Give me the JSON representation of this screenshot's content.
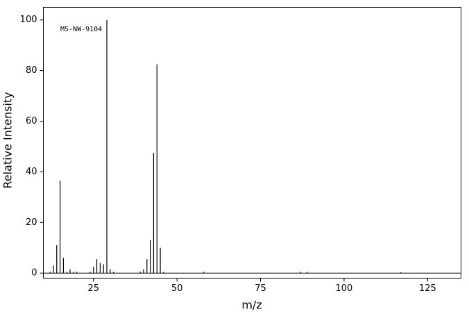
{
  "chart_data": {
    "type": "stem",
    "annotation": "MS-NW-9104",
    "xlabel": "m/z",
    "ylabel": "Relative Intensity",
    "color": "#000000",
    "x": [
      12,
      13,
      14,
      15,
      16,
      17,
      18,
      19,
      20,
      24,
      25,
      26,
      27,
      28,
      29,
      30,
      31,
      39,
      40,
      41,
      42,
      43,
      44,
      45,
      46,
      58,
      87,
      89,
      117
    ],
    "values": [
      0.5,
      3,
      11,
      36.5,
      6,
      0.5,
      1.5,
      0.5,
      0.5,
      0.5,
      2.5,
      5.5,
      4,
      3.5,
      100,
      1.5,
      0.5,
      0.5,
      1.5,
      5.5,
      13,
      47.5,
      82.5,
      10,
      0.5,
      0.5,
      0.5,
      0.5,
      0.3
    ],
    "xlim": [
      10,
      135
    ],
    "ylim": [
      -2,
      105
    ],
    "xticks": [
      25,
      50,
      75,
      100,
      125
    ],
    "yticks": [
      0,
      20,
      40,
      60,
      80,
      100
    ]
  }
}
